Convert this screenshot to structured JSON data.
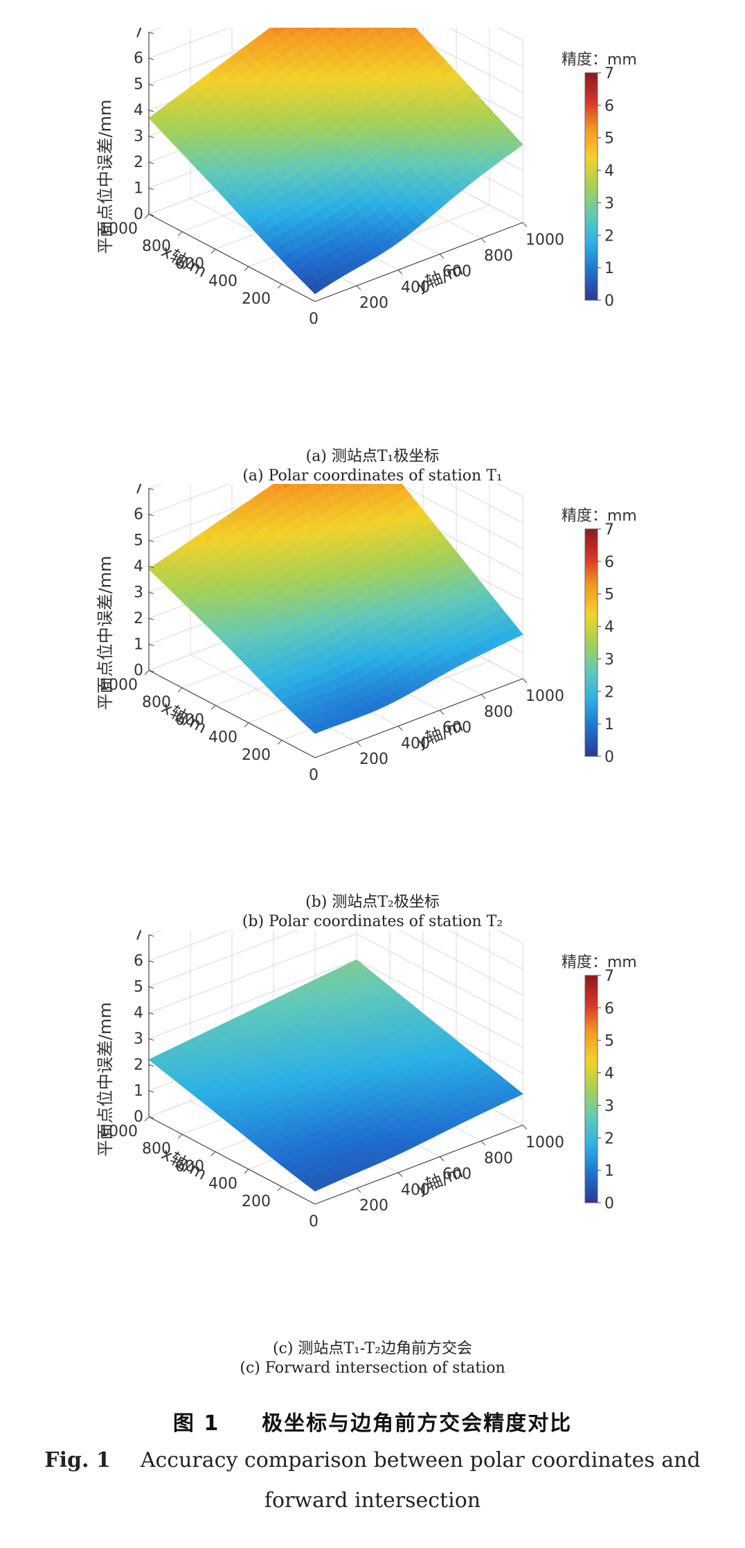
{
  "colorbar_label": "精度：mm",
  "colorbar_ticks": [
    "0",
    "1",
    "2",
    "3",
    "4",
    "5",
    "6",
    "7"
  ],
  "colormap": [
    "#2b3990",
    "#1f6fd0",
    "#2bb0e6",
    "#63c9b8",
    "#a6d156",
    "#f2d22a",
    "#f59a23",
    "#d6332a",
    "#8b1a1a"
  ],
  "axes": {
    "z_label": "平面点位中误差/mm",
    "x_label": "x轴/m",
    "y_label": "y轴/m",
    "z_ticks": [
      "0",
      "1",
      "2",
      "3",
      "4",
      "5",
      "6",
      "7"
    ],
    "x_ticks": [
      "200",
      "400",
      "600",
      "800",
      "1000"
    ],
    "y_ticks": [
      "200",
      "400",
      "600",
      "800",
      "1000"
    ],
    "origin_tick": "0"
  },
  "chart_data": [
    {
      "type": "surface",
      "caption_cn": "(a) 测站点T₁极坐标",
      "caption_en": "(a) Polar coordinates of station T₁",
      "xlabel": "x轴/m",
      "ylabel": "y轴/m",
      "zlabel": "平面点位中误差/mm",
      "xlim": [
        0,
        1000
      ],
      "ylim": [
        0,
        1000
      ],
      "zlim": [
        0,
        7
      ],
      "clim": [
        0,
        7
      ],
      "corners": {
        "x0_y0": 0.3,
        "x1000_y0": 3.7,
        "x0_y1000": 3.0,
        "x1000_y1000": 6.6
      },
      "min": 0.3
    },
    {
      "type": "surface",
      "caption_cn": "(b) 测站点T₂极坐标",
      "caption_en": "(b) Polar coordinates of station T₂",
      "xlabel": "x轴/m",
      "ylabel": "y轴/m",
      "zlabel": "平面点位中误差/mm",
      "xlim": [
        0,
        1000
      ],
      "ylim": [
        0,
        1000
      ],
      "zlim": [
        0,
        7
      ],
      "clim": [
        0,
        7
      ],
      "corners": {
        "x0_y0": 1.0,
        "x1000_y0": 3.9,
        "x0_y1000": 1.7,
        "x1000_y1000": 6.3
      },
      "min": 0.4
    },
    {
      "type": "surface",
      "caption_cn": "(c) 测站点T₁-T₂边角前方交会",
      "caption_en": "(c) Forward intersection of station",
      "xlabel": "x轴/m",
      "ylabel": "y轴/m",
      "zlabel": "平面点位中误差/mm",
      "xlim": [
        0,
        1000
      ],
      "ylim": [
        0,
        1000
      ],
      "zlim": [
        0,
        7
      ],
      "clim": [
        0,
        7
      ],
      "corners": {
        "x0_y0": 0.5,
        "x1000_y0": 2.2,
        "x0_y1000": 1.2,
        "x1000_y1000": 3.0
      },
      "min": 0.5
    }
  ],
  "figure": {
    "title_cn_num": "图 1",
    "title_cn": "极坐标与边角前方交会精度对比",
    "title_en_num": "Fig. 1",
    "title_en": "Accuracy comparison between polar coordinates and forward intersection"
  }
}
